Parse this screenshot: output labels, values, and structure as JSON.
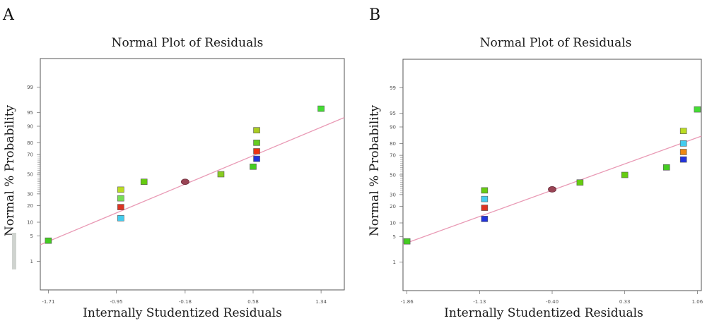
{
  "chart_data": [
    {
      "panel": "A",
      "type": "scatter",
      "title": "Normal Plot of Residuals",
      "xlabel": "Internally Studentized Residuals",
      "ylabel": "Normal % Probability",
      "x_ticks": [
        -1.71,
        -0.95,
        -0.18,
        0.58,
        1.34
      ],
      "x_tick_labels": [
        "-1.71",
        "-0.95",
        "-0.18",
        "0.58",
        "1.34"
      ],
      "y_ticks": [
        1,
        5,
        10,
        20,
        30,
        50,
        70,
        80,
        90,
        95,
        99
      ],
      "y_tick_labels": [
        "1",
        "5",
        "10",
        "20",
        "30",
        "50",
        "70",
        "80",
        "90",
        "95",
        "99"
      ],
      "xlim": [
        -1.8,
        1.6
      ],
      "ylim_probability": [
        0.1,
        99.9
      ],
      "fit_line": {
        "x": [
          -1.8,
          1.6
        ],
        "y": [
          2.98,
          93.5
        ]
      },
      "points": [
        {
          "x": -1.71,
          "y": 3.8,
          "color": "#44cc22"
        },
        {
          "x": -0.9,
          "y": 12,
          "color": "#44ccee"
        },
        {
          "x": -0.9,
          "y": 19,
          "color": "#dd3322"
        },
        {
          "x": -0.9,
          "y": 26,
          "color": "#77dd55"
        },
        {
          "x": -0.9,
          "y": 34,
          "color": "#bbdd22"
        },
        {
          "x": -0.64,
          "y": 42,
          "color": "#66cc11"
        },
        {
          "x": -0.18,
          "y": 42,
          "color": "#9a4455"
        },
        {
          "x": 0.22,
          "y": 50,
          "color": "#88cc22"
        },
        {
          "x": 0.58,
          "y": 58,
          "color": "#44cc22"
        },
        {
          "x": 0.62,
          "y": 66,
          "color": "#2233dd"
        },
        {
          "x": 0.62,
          "y": 73,
          "color": "#ee3311"
        },
        {
          "x": 0.62,
          "y": 80,
          "color": "#66cc22"
        },
        {
          "x": 0.62,
          "y": 88,
          "color": "#aacc22"
        },
        {
          "x": 1.34,
          "y": 96,
          "color": "#44dd33"
        }
      ]
    },
    {
      "panel": "B",
      "type": "scatter",
      "title": "Normal Plot of Residuals",
      "xlabel": "Internally Studentized Residuals",
      "ylabel": "Normal % Probability",
      "x_ticks": [
        -1.86,
        -1.13,
        -0.4,
        0.33,
        1.06
      ],
      "x_tick_labels": [
        "-1.86",
        "-1.13",
        "-0.40",
        "0.33",
        "1.06"
      ],
      "y_ticks": [
        1,
        5,
        10,
        20,
        30,
        50,
        70,
        80,
        90,
        95,
        99
      ],
      "y_tick_labels": [
        "1",
        "5",
        "10",
        "20",
        "30",
        "50",
        "70",
        "80",
        "90",
        "95",
        "99"
      ],
      "xlim": [
        -1.9,
        1.1
      ],
      "ylim_probability": [
        0.1,
        99.9
      ],
      "fit_line": {
        "x": [
          -1.9,
          1.1
        ],
        "y": [
          3.2,
          85
        ]
      },
      "points": [
        {
          "x": -1.86,
          "y": 3.8,
          "color": "#44cc22"
        },
        {
          "x": -1.08,
          "y": 12,
          "color": "#2233dd"
        },
        {
          "x": -1.08,
          "y": 19,
          "color": "#dd3322"
        },
        {
          "x": -1.08,
          "y": 26,
          "color": "#44ccee"
        },
        {
          "x": -1.08,
          "y": 34,
          "color": "#66cc11"
        },
        {
          "x": -0.4,
          "y": 35,
          "color": "#9a4455"
        },
        {
          "x": -0.12,
          "y": 42,
          "color": "#66cc11"
        },
        {
          "x": 0.33,
          "y": 50,
          "color": "#66cc11"
        },
        {
          "x": 0.75,
          "y": 58,
          "color": "#44cc22"
        },
        {
          "x": 0.92,
          "y": 66,
          "color": "#2233dd"
        },
        {
          "x": 0.92,
          "y": 73,
          "color": "#ee8811"
        },
        {
          "x": 0.92,
          "y": 80,
          "color": "#44ccee"
        },
        {
          "x": 0.92,
          "y": 88,
          "color": "#bbdd22"
        },
        {
          "x": 1.06,
          "y": 96,
          "color": "#44dd33"
        }
      ]
    }
  ]
}
